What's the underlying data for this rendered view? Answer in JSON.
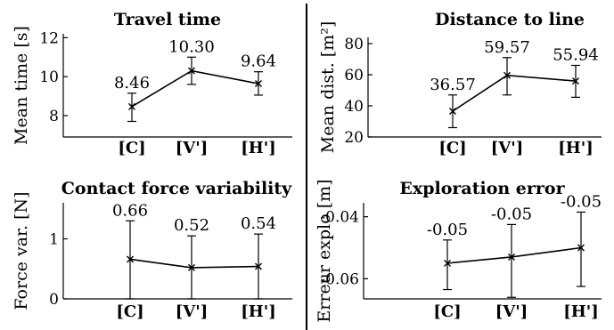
{
  "chart_data": [
    {
      "type": "line",
      "title": "Travel time",
      "ylabel": "Mean time [s]",
      "categories": [
        "[C]",
        "[V']",
        "[H']"
      ],
      "values": [
        8.46,
        10.3,
        9.64
      ],
      "value_labels": [
        "8.46",
        "10.30",
        "9.64"
      ],
      "err_low": [
        7.7,
        9.6,
        9.05
      ],
      "err_high": [
        9.15,
        11.0,
        10.25
      ],
      "ylim": [
        6.9,
        12.2
      ],
      "yticks": [
        8,
        10,
        12
      ],
      "ytick_labels": [
        "8",
        "10",
        "12"
      ]
    },
    {
      "type": "line",
      "title": "Distance to line",
      "ylabel": "Mean dist. [m²]",
      "categories": [
        "[C]",
        "[V']",
        "[H']"
      ],
      "values": [
        36.57,
        59.57,
        55.94
      ],
      "value_labels": [
        "36.57",
        "59.57",
        "55.94"
      ],
      "err_low": [
        26,
        47,
        45.5
      ],
      "err_high": [
        47,
        71,
        66
      ],
      "ylim": [
        20,
        84
      ],
      "yticks": [
        20,
        40,
        60,
        80
      ],
      "ytick_labels": [
        "20",
        "40",
        "60",
        "80"
      ]
    },
    {
      "type": "line",
      "title": "Contact force variability",
      "ylabel": "Force var. [N]",
      "categories": [
        "[C]",
        "[V']",
        "[H']"
      ],
      "values": [
        0.66,
        0.52,
        0.54
      ],
      "value_labels": [
        "0.66",
        "0.52",
        "0.54"
      ],
      "err_low": [
        0,
        0,
        0
      ],
      "err_high": [
        1.3,
        1.05,
        1.08
      ],
      "ylim": [
        0,
        1.6
      ],
      "yticks": [
        0,
        1
      ],
      "ytick_labels": [
        "0",
        "1"
      ]
    },
    {
      "type": "line",
      "title": "Exploration error",
      "ylabel": "Erreur explo [m]",
      "categories": [
        "[C]",
        "[V']",
        "[H']"
      ],
      "values": [
        -0.055,
        -0.053,
        -0.05
      ],
      "value_labels": [
        "-0.05",
        "-0.05",
        "-0.05"
      ],
      "err_low": [
        -0.0635,
        -0.066,
        -0.0625
      ],
      "err_high": [
        -0.0475,
        -0.0425,
        -0.0385
      ],
      "ylim": [
        -0.0665,
        -0.0355
      ],
      "yticks": [
        -0.06,
        -0.04
      ],
      "ytick_labels": [
        "-0.06",
        "-0.04"
      ]
    }
  ]
}
